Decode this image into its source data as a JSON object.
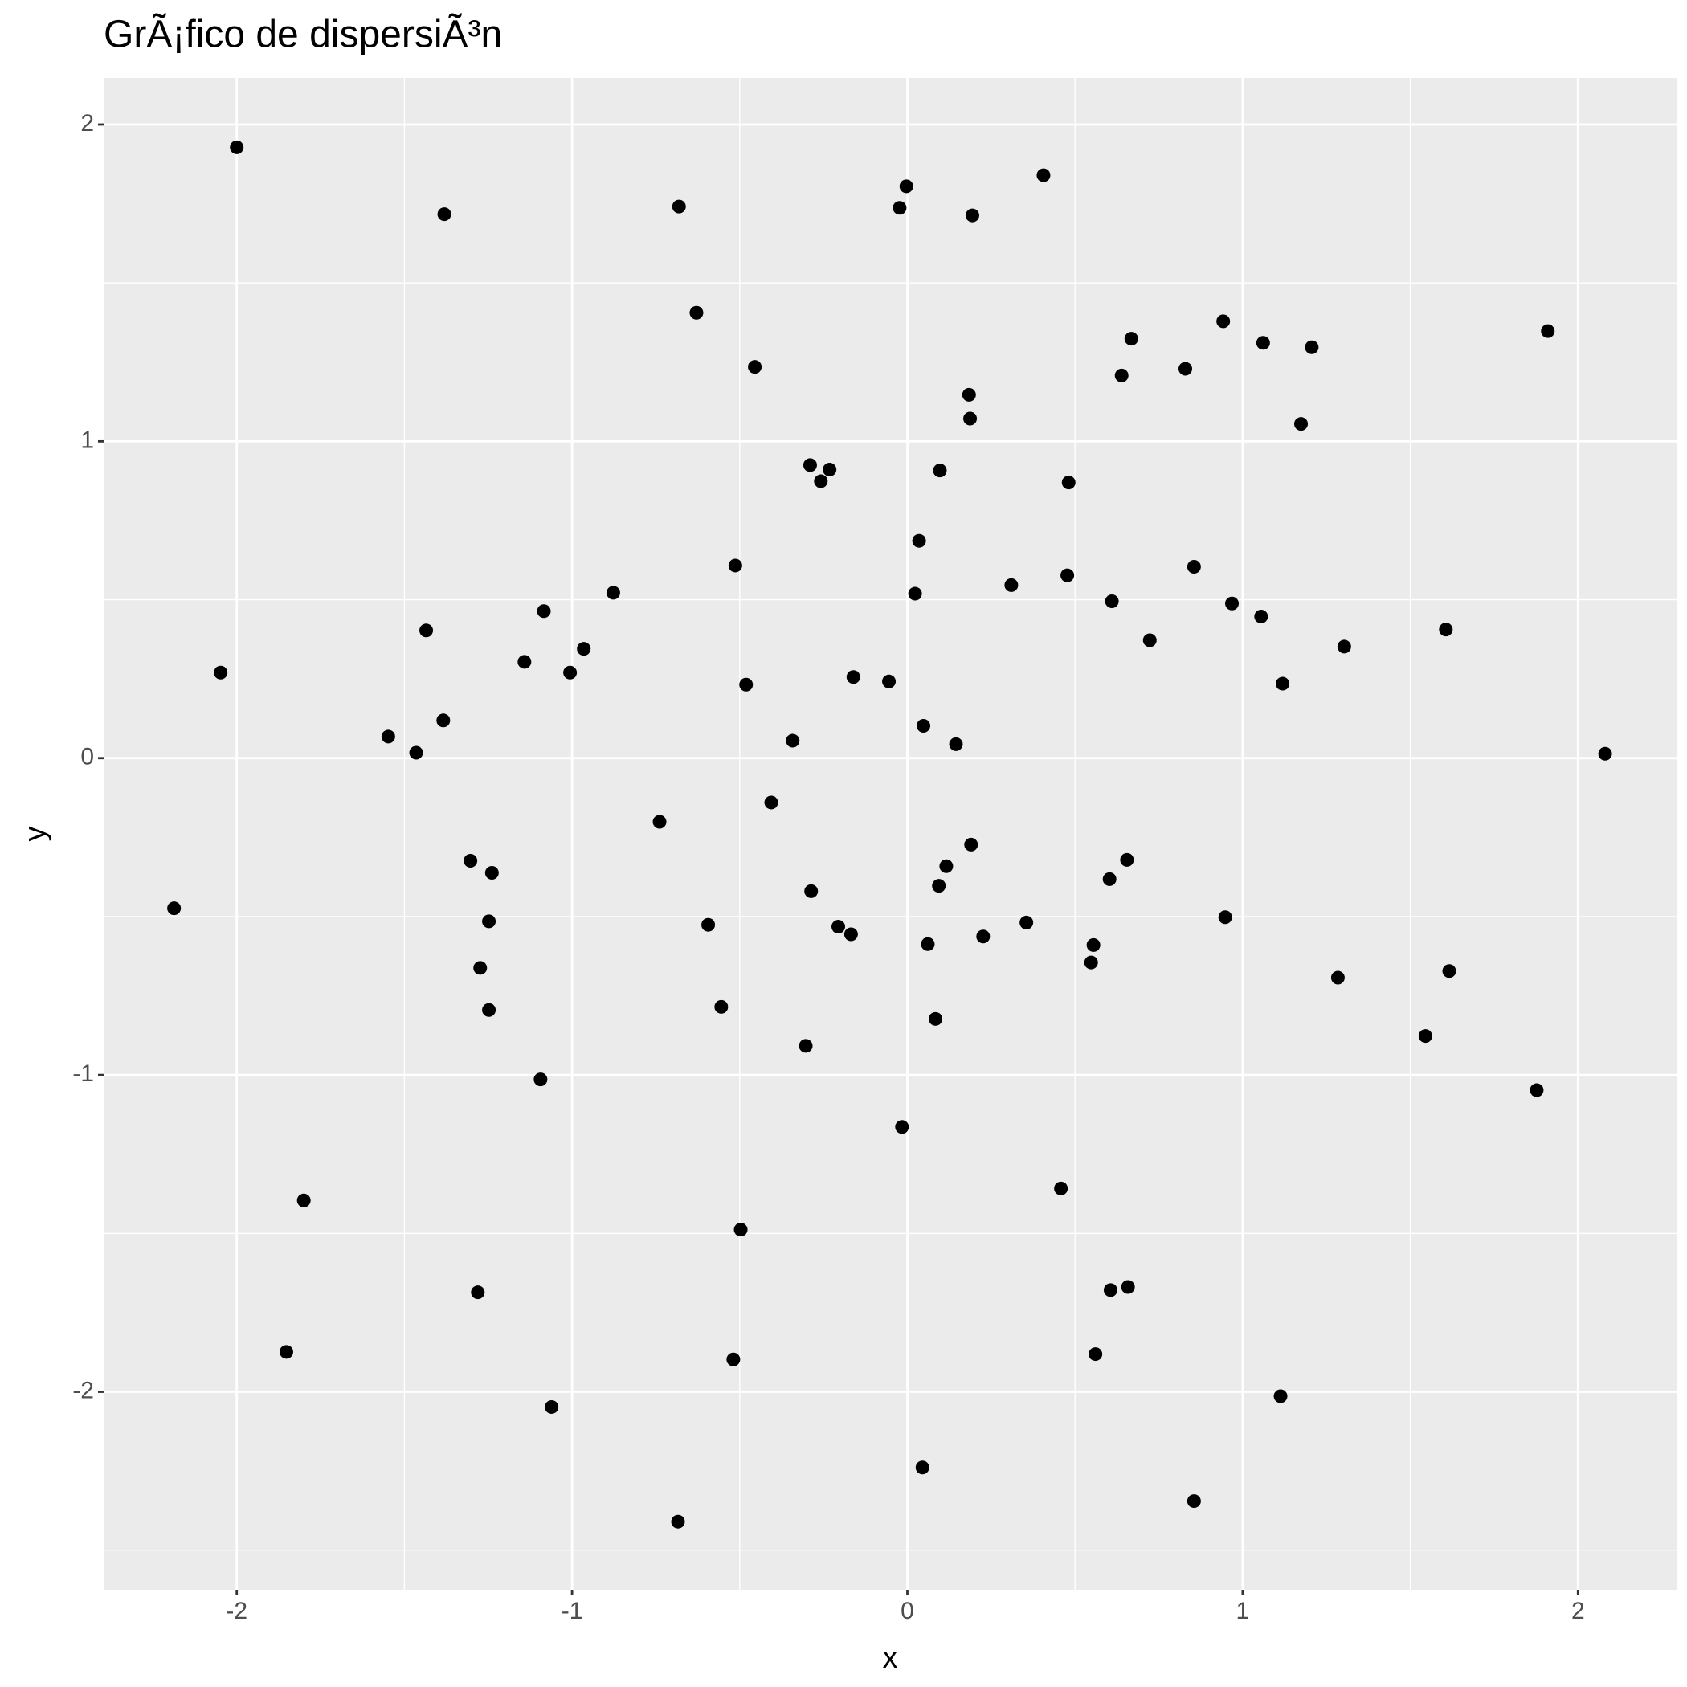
{
  "chart_data": {
    "type": "scatter",
    "title": "GrÃ¡fico de dispersiÃ³n",
    "x_label": "x",
    "y_label": "y",
    "color": "#000000",
    "background": "#EBEBEB",
    "grid": true,
    "xlim": [
      -2.397,
      2.294
    ],
    "ylim": [
      -2.625,
      2.147
    ],
    "xticks": [
      -2,
      -1,
      0,
      1,
      2
    ],
    "yticks": [
      -2,
      -1,
      0,
      1,
      2
    ],
    "x": [
      -2.0,
      -1.381,
      -0.681,
      -0.629,
      -0.455,
      -0.023,
      -0.003,
      0.194,
      0.406,
      0.668,
      0.639,
      0.829,
      0.942,
      1.061,
      1.206,
      1.174,
      1.91,
      0.184,
      0.187,
      -0.29,
      -0.232,
      -0.258,
      0.097,
      0.481,
      0.035,
      -0.513,
      -0.877,
      0.023,
      0.31,
      0.477,
      0.855,
      0.61,
      0.968,
      1.055,
      0.723,
      1.303,
      1.606,
      1.119,
      -2.048,
      -1.435,
      -1.084,
      -1.142,
      -0.965,
      -1.006,
      -0.481,
      -0.161,
      -0.055,
      -1.548,
      -1.465,
      -1.384,
      -0.342,
      0.048,
      0.145,
      2.081,
      -0.739,
      -0.406,
      0.19,
      0.116,
      0.094,
      -0.287,
      0.655,
      0.603,
      -1.303,
      -1.239,
      -1.248,
      -2.187,
      -0.594,
      -0.206,
      -0.168,
      0.355,
      0.226,
      0.061,
      0.555,
      0.948,
      0.548,
      -1.274,
      -1.248,
      1.284,
      1.616,
      -0.555,
      0.084,
      -0.303,
      1.545,
      -1.094,
      1.877,
      -0.016,
      0.458,
      -1.8,
      -0.497,
      -1.281,
      0.606,
      0.658,
      -1.852,
      -0.519,
      0.561,
      -1.061,
      1.113,
      0.045,
      0.855,
      -0.684
    ],
    "values": [
      1.928,
      1.717,
      1.741,
      1.406,
      1.235,
      1.737,
      1.805,
      1.713,
      1.84,
      1.324,
      1.208,
      1.229,
      1.379,
      1.311,
      1.297,
      1.055,
      1.348,
      1.147,
      1.072,
      0.925,
      0.911,
      0.874,
      0.908,
      0.87,
      0.686,
      0.608,
      0.522,
      0.519,
      0.546,
      0.577,
      0.604,
      0.495,
      0.488,
      0.447,
      0.372,
      0.352,
      0.406,
      0.235,
      0.27,
      0.403,
      0.464,
      0.304,
      0.345,
      0.27,
      0.232,
      0.256,
      0.242,
      0.068,
      0.017,
      0.119,
      0.055,
      0.102,
      0.044,
      0.014,
      -0.201,
      -0.14,
      -0.273,
      -0.341,
      -0.403,
      -0.42,
      -0.321,
      -0.382,
      -0.324,
      -0.362,
      -0.515,
      -0.474,
      -0.526,
      -0.532,
      -0.556,
      -0.519,
      -0.563,
      -0.587,
      -0.59,
      -0.502,
      -0.645,
      -0.662,
      -0.795,
      -0.693,
      -0.672,
      -0.785,
      -0.823,
      -0.908,
      -0.877,
      -1.014,
      -1.048,
      -1.164,
      -1.358,
      -1.396,
      -1.488,
      -1.686,
      -1.679,
      -1.669,
      -1.874,
      -1.898,
      -1.881,
      -2.048,
      -2.014,
      -2.239,
      -2.345,
      -2.41
    ]
  }
}
